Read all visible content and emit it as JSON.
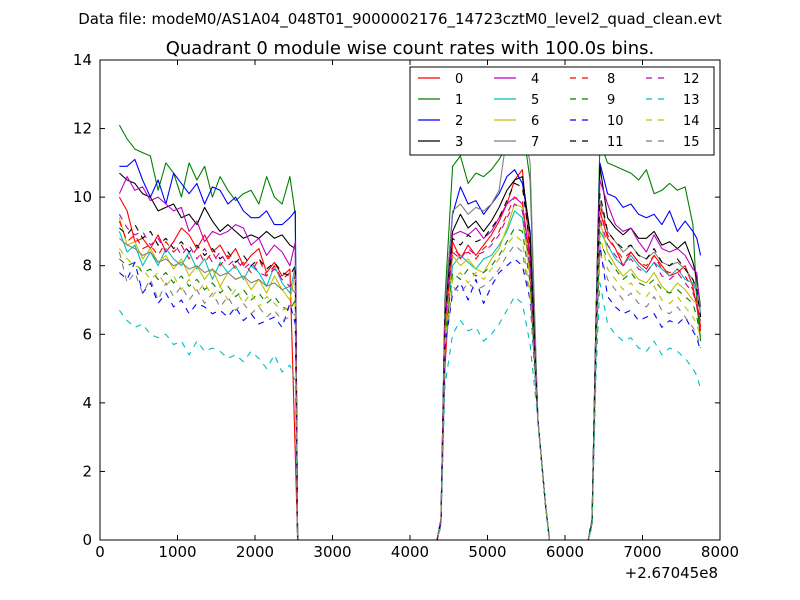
{
  "figure": {
    "suptitle": "Data file: modeM0/AS1A04_048T01_9000002176_14723cztM0_level2_quad_clean.evt"
  },
  "chart_data": {
    "type": "line",
    "title": "Quadrant 0 module wise count rates with 100.0s bins.",
    "xlabel": "",
    "ylabel": "",
    "x_offset_label": "+2.67045e8",
    "xlim": [
      0,
      8000
    ],
    "ylim": [
      0,
      14
    ],
    "xticks": [
      0,
      1000,
      2000,
      3000,
      4000,
      5000,
      6000,
      7000,
      8000
    ],
    "yticks": [
      0,
      2,
      4,
      6,
      8,
      10,
      12,
      14
    ],
    "legend_position": "top-right",
    "x": [
      250,
      350,
      450,
      550,
      650,
      750,
      850,
      950,
      1050,
      1150,
      1250,
      1350,
      1450,
      1550,
      1650,
      1750,
      1850,
      1950,
      2050,
      2150,
      2250,
      2350,
      2450,
      2520,
      2550,
      2600,
      4300,
      4350,
      4400,
      4450,
      4550,
      4650,
      4750,
      4850,
      4950,
      5050,
      5150,
      5250,
      5350,
      5450,
      5550,
      5650,
      5750,
      5800,
      6250,
      6300,
      6350,
      6400,
      6450,
      6550,
      6650,
      6750,
      6850,
      6950,
      7050,
      7150,
      7250,
      7350,
      7450,
      7550,
      7650,
      7700,
      7750
    ],
    "series": [
      {
        "name": "0",
        "color": "#ff0000",
        "dash": "solid",
        "values": [
          10.0,
          9.6,
          8.7,
          8.8,
          8.5,
          8.9,
          8.4,
          8.7,
          9.1,
          8.9,
          8.5,
          8.9,
          8.4,
          8.6,
          8.2,
          8.5,
          8.0,
          8.3,
          8.5,
          7.8,
          8.1,
          7.7,
          7.9,
          2.5,
          0,
          0,
          0,
          0,
          0.6,
          5.0,
          8.7,
          8.2,
          8.6,
          8.3,
          8.6,
          8.9,
          9.3,
          9.8,
          10.5,
          10.8,
          8.3,
          3.5,
          1.0,
          0,
          0,
          0,
          0.5,
          6.0,
          9.6,
          8.8,
          8.5,
          8.0,
          8.4,
          8.1,
          7.9,
          8.3,
          8.0,
          7.7,
          7.8,
          8.0,
          7.4,
          6.8,
          6.1
        ]
      },
      {
        "name": "1",
        "color": "#008000",
        "dash": "solid",
        "values": [
          12.1,
          11.7,
          11.4,
          11.3,
          11.2,
          10.2,
          11.0,
          10.7,
          10.0,
          11.0,
          10.5,
          10.9,
          10.0,
          10.6,
          10.2,
          9.9,
          10.1,
          10.2,
          9.8,
          10.6,
          10.0,
          9.8,
          10.6,
          9.5,
          0,
          0,
          0,
          0,
          0.6,
          7.0,
          10.9,
          11.2,
          10.4,
          10.7,
          10.6,
          10.8,
          11.1,
          11.5,
          12.3,
          12.1,
          10.5,
          3.5,
          1.0,
          0,
          0,
          0,
          0.6,
          6.5,
          11.6,
          11.0,
          10.9,
          10.8,
          10.7,
          10.5,
          10.8,
          10.1,
          10.2,
          10.4,
          10.2,
          10.3,
          9.2,
          7.0,
          5.8
        ]
      },
      {
        "name": "2",
        "color": "#0000ff",
        "dash": "solid",
        "values": [
          10.9,
          10.9,
          11.1,
          10.5,
          10.0,
          10.5,
          9.8,
          10.7,
          10.4,
          10.1,
          10.4,
          9.8,
          10.3,
          10.2,
          9.8,
          10.0,
          9.6,
          9.4,
          9.4,
          9.6,
          9.2,
          9.2,
          9.4,
          9.6,
          0,
          0,
          0,
          0,
          0.6,
          6.8,
          9.5,
          10.3,
          9.8,
          9.9,
          9.5,
          9.8,
          10.1,
          10.6,
          10.8,
          10.4,
          9.0,
          3.5,
          1.0,
          0,
          0,
          0,
          0.6,
          6.5,
          11.0,
          10.1,
          10.0,
          9.7,
          9.8,
          9.5,
          9.4,
          9.5,
          9.2,
          9.6,
          9.0,
          9.3,
          9.0,
          8.8,
          8.3
        ]
      },
      {
        "name": "3",
        "color": "#000000",
        "dash": "solid",
        "values": [
          10.7,
          10.5,
          10.4,
          10.1,
          10.0,
          9.6,
          9.7,
          9.8,
          9.4,
          9.5,
          9.2,
          9.7,
          9.3,
          9.0,
          9.2,
          9.0,
          8.8,
          8.9,
          8.8,
          9.0,
          8.8,
          8.9,
          8.6,
          8.5,
          0,
          0,
          0,
          0,
          0.6,
          6.6,
          9.0,
          9.5,
          9.1,
          9.3,
          9.0,
          9.3,
          9.7,
          10.2,
          10.5,
          10.6,
          8.9,
          3.5,
          1.0,
          0,
          0,
          0,
          0.6,
          6.4,
          10.9,
          9.4,
          9.1,
          8.9,
          9.1,
          8.8,
          8.8,
          9.0,
          8.6,
          8.7,
          8.5,
          8.7,
          8.1,
          7.6,
          6.8
        ]
      },
      {
        "name": "4",
        "color": "#bf00bf",
        "dash": "solid",
        "values": [
          10.1,
          10.6,
          10.2,
          10.3,
          9.9,
          10.0,
          9.8,
          9.6,
          9.7,
          9.0,
          9.3,
          8.7,
          9.0,
          8.9,
          9.0,
          9.2,
          9.1,
          8.6,
          8.8,
          8.3,
          8.6,
          8.4,
          8.0,
          8.7,
          0,
          0,
          0,
          0,
          0.6,
          6.4,
          8.9,
          9.0,
          8.9,
          9.1,
          8.8,
          9.0,
          9.4,
          9.8,
          10.0,
          9.8,
          8.2,
          3.5,
          1.0,
          0,
          0,
          0,
          0.6,
          6.3,
          10.5,
          9.8,
          9.2,
          9.0,
          9.1,
          8.7,
          8.4,
          8.9,
          8.5,
          8.4,
          8.5,
          8.3,
          7.9,
          7.8,
          6.5
        ]
      },
      {
        "name": "5",
        "color": "#00bfbf",
        "dash": "solid",
        "values": [
          9.0,
          8.4,
          8.6,
          8.0,
          8.4,
          8.0,
          8.5,
          8.2,
          8.0,
          8.4,
          7.9,
          8.2,
          7.6,
          8.1,
          7.8,
          8.0,
          7.6,
          8.0,
          7.8,
          7.4,
          8.0,
          7.5,
          7.2,
          8.0,
          0,
          0,
          0,
          0,
          0.6,
          6.0,
          8.0,
          8.3,
          8.1,
          7.9,
          8.2,
          8.3,
          8.6,
          9.0,
          9.6,
          9.4,
          7.8,
          3.5,
          1.0,
          0,
          0,
          0,
          0.5,
          6.0,
          9.0,
          8.6,
          8.2,
          8.0,
          8.3,
          8.0,
          7.8,
          8.1,
          7.9,
          7.7,
          7.9,
          7.6,
          7.5,
          7.2,
          6.6
        ]
      },
      {
        "name": "6",
        "color": "#bfbf00",
        "dash": "solid",
        "values": [
          9.4,
          8.6,
          8.7,
          8.2,
          8.5,
          8.1,
          8.3,
          7.9,
          8.2,
          7.7,
          8.0,
          7.6,
          7.9,
          7.4,
          7.8,
          7.6,
          7.7,
          7.3,
          7.6,
          7.2,
          7.7,
          7.3,
          7.0,
          7.8,
          0,
          0,
          0,
          0,
          0.6,
          6.0,
          8.3,
          8.0,
          8.2,
          7.9,
          7.8,
          8.2,
          8.5,
          9.1,
          9.8,
          9.7,
          7.6,
          3.5,
          1.0,
          0,
          0,
          0,
          0.5,
          5.9,
          9.3,
          8.4,
          8.0,
          7.7,
          7.9,
          7.6,
          7.5,
          7.8,
          7.4,
          7.2,
          7.5,
          7.3,
          7.0,
          6.9,
          6.4
        ]
      },
      {
        "name": "7",
        "color": "#808080",
        "dash": "solid",
        "values": [
          8.8,
          8.6,
          8.5,
          8.3,
          8.4,
          8.1,
          8.2,
          8.0,
          8.1,
          7.9,
          8.0,
          7.8,
          7.9,
          7.7,
          7.8,
          7.6,
          7.7,
          7.5,
          7.6,
          7.4,
          7.5,
          7.3,
          7.4,
          7.2,
          0,
          0,
          0,
          0,
          0.6,
          6.8,
          9.6,
          9.8,
          9.5,
          9.7,
          9.6,
          9.8,
          10.2,
          11.8,
          12.5,
          12.2,
          11.0,
          3.5,
          1.0,
          0,
          0,
          0,
          0.6,
          6.5,
          9.9,
          9.0,
          8.7,
          8.4,
          8.6,
          8.3,
          8.2,
          8.4,
          8.1,
          8.0,
          8.1,
          7.9,
          7.6,
          7.3,
          6.8
        ]
      },
      {
        "name": "8",
        "color": "#ff0000",
        "dash": "dashed",
        "values": [
          9.3,
          8.7,
          8.9,
          8.5,
          8.6,
          8.3,
          8.7,
          8.4,
          8.6,
          8.2,
          8.5,
          8.1,
          8.4,
          8.0,
          8.3,
          7.9,
          8.1,
          7.8,
          8.2,
          7.7,
          8.0,
          7.6,
          7.8,
          7.9,
          0,
          0,
          0,
          0,
          0.6,
          6.3,
          8.5,
          8.3,
          8.4,
          8.2,
          8.5,
          8.7,
          9.0,
          9.5,
          10.0,
          9.9,
          8.0,
          3.5,
          1.0,
          0,
          0,
          0,
          0.5,
          6.1,
          9.8,
          8.9,
          8.5,
          8.2,
          8.4,
          8.1,
          8.0,
          8.3,
          7.9,
          7.8,
          7.9,
          7.7,
          7.3,
          7.0,
          6.2
        ]
      },
      {
        "name": "9",
        "color": "#008000",
        "dash": "dashed",
        "values": [
          8.2,
          8.0,
          8.1,
          7.8,
          7.9,
          7.6,
          7.8,
          7.5,
          7.7,
          7.4,
          7.6,
          7.3,
          7.5,
          7.2,
          7.4,
          7.1,
          7.3,
          7.0,
          7.2,
          6.9,
          7.1,
          6.8,
          6.7,
          7.0,
          0,
          0,
          0,
          0,
          0.5,
          5.8,
          7.8,
          7.6,
          7.9,
          7.7,
          7.8,
          8.0,
          8.3,
          8.7,
          9.1,
          9.0,
          7.5,
          3.5,
          1.0,
          0,
          0,
          0,
          0.5,
          5.7,
          8.7,
          8.2,
          7.9,
          7.6,
          7.8,
          7.5,
          7.4,
          7.6,
          7.3,
          7.2,
          7.3,
          7.1,
          6.9,
          6.5,
          5.9
        ]
      },
      {
        "name": "10",
        "color": "#0000ff",
        "dash": "dashed",
        "values": [
          7.8,
          7.6,
          8.1,
          7.2,
          7.5,
          6.9,
          7.2,
          6.8,
          7.0,
          6.6,
          6.9,
          6.8,
          6.6,
          6.7,
          6.5,
          6.8,
          6.4,
          6.6,
          6.3,
          6.4,
          6.5,
          6.2,
          6.9,
          6.3,
          0,
          0,
          0,
          0,
          0.5,
          5.6,
          7.2,
          7.5,
          7.0,
          7.6,
          6.9,
          7.4,
          7.8,
          8.0,
          8.2,
          8.0,
          7.0,
          3.5,
          1.0,
          0,
          0,
          0,
          0.5,
          5.5,
          8.6,
          7.1,
          6.8,
          6.6,
          6.7,
          6.4,
          6.5,
          6.6,
          6.2,
          6.4,
          6.3,
          6.5,
          6.1,
          5.9,
          5.5
        ]
      },
      {
        "name": "11",
        "color": "#000000",
        "dash": "dashed",
        "values": [
          9.1,
          8.9,
          9.2,
          8.8,
          9.0,
          8.6,
          8.8,
          8.5,
          8.7,
          8.4,
          8.6,
          8.3,
          8.5,
          8.2,
          8.4,
          8.1,
          8.3,
          8.0,
          8.2,
          7.9,
          8.1,
          7.8,
          7.7,
          8.0,
          0,
          0,
          0,
          0,
          0.6,
          6.5,
          8.8,
          8.6,
          8.9,
          8.7,
          8.8,
          9.1,
          9.4,
          9.9,
          10.4,
          10.3,
          8.6,
          3.5,
          1.0,
          0,
          0,
          0,
          0.6,
          6.3,
          10.1,
          9.0,
          8.7,
          8.5,
          8.6,
          8.3,
          8.2,
          8.5,
          8.1,
          8.0,
          8.2,
          7.9,
          7.6,
          7.3,
          6.5
        ]
      },
      {
        "name": "12",
        "color": "#bf00bf",
        "dash": "dashed",
        "values": [
          9.5,
          9.1,
          8.9,
          9.0,
          8.6,
          8.8,
          8.4,
          8.7,
          8.3,
          8.6,
          8.2,
          8.5,
          8.1,
          8.4,
          8.0,
          8.2,
          7.9,
          8.1,
          7.8,
          7.7,
          7.9,
          7.6,
          7.4,
          7.7,
          0,
          0,
          0,
          0,
          0.6,
          6.2,
          8.4,
          8.2,
          8.5,
          8.3,
          8.4,
          8.6,
          8.9,
          9.4,
          9.8,
          9.6,
          7.9,
          3.5,
          1.0,
          0,
          0,
          0,
          0.5,
          6.0,
          9.4,
          8.6,
          8.3,
          8.0,
          8.2,
          7.9,
          7.8,
          8.1,
          7.7,
          7.6,
          7.8,
          7.5,
          7.2,
          6.9,
          6.3
        ]
      },
      {
        "name": "13",
        "color": "#00bfbf",
        "dash": "dashed",
        "values": [
          6.7,
          6.4,
          6.2,
          6.3,
          6.0,
          5.9,
          6.0,
          5.7,
          5.8,
          5.4,
          5.8,
          5.5,
          5.6,
          5.5,
          5.3,
          5.4,
          5.2,
          5.5,
          5.3,
          5.0,
          5.4,
          4.9,
          5.1,
          4.6,
          0,
          0,
          0,
          0,
          0.4,
          4.5,
          6.0,
          6.4,
          6.1,
          6.2,
          5.8,
          6.0,
          6.3,
          6.7,
          7.1,
          6.9,
          5.7,
          3.5,
          1.0,
          0,
          0,
          0,
          0.4,
          4.8,
          7.5,
          6.3,
          6.0,
          5.8,
          5.9,
          5.6,
          5.5,
          5.8,
          5.4,
          5.6,
          5.5,
          5.3,
          5.0,
          4.8,
          4.4
        ]
      },
      {
        "name": "14",
        "color": "#bfbf00",
        "dash": "dashed",
        "values": [
          8.5,
          8.2,
          8.0,
          7.9,
          7.6,
          7.8,
          7.4,
          7.7,
          7.3,
          7.6,
          7.2,
          7.5,
          7.1,
          7.4,
          7.0,
          7.3,
          6.9,
          7.2,
          6.8,
          7.1,
          6.9,
          6.7,
          6.8,
          6.9,
          0,
          0,
          0,
          0,
          0.5,
          5.7,
          7.6,
          7.8,
          7.5,
          7.8,
          7.6,
          7.9,
          8.2,
          8.6,
          8.9,
          8.7,
          7.2,
          3.5,
          1.0,
          0,
          0,
          0,
          0.5,
          5.6,
          8.9,
          7.9,
          7.6,
          7.3,
          7.5,
          7.2,
          7.1,
          7.4,
          7.0,
          6.9,
          7.1,
          6.8,
          6.5,
          6.3,
          5.9
        ]
      },
      {
        "name": "15",
        "color": "#808080",
        "dash": "dashed",
        "values": [
          8.4,
          7.5,
          7.8,
          7.2,
          7.6,
          7.0,
          7.5,
          7.1,
          7.4,
          7.0,
          7.3,
          6.9,
          7.2,
          6.8,
          7.1,
          6.7,
          6.9,
          6.6,
          6.8,
          6.5,
          6.7,
          6.4,
          6.5,
          6.6,
          0,
          0,
          0,
          0,
          0.5,
          5.5,
          7.4,
          7.2,
          7.5,
          7.3,
          7.4,
          7.6,
          7.9,
          8.3,
          8.6,
          8.4,
          7.0,
          3.5,
          1.0,
          0,
          0,
          0,
          0.5,
          5.4,
          8.4,
          7.6,
          7.3,
          7.0,
          7.2,
          6.9,
          6.8,
          7.1,
          6.7,
          6.6,
          6.8,
          6.5,
          6.2,
          6.0,
          5.6
        ]
      }
    ]
  }
}
